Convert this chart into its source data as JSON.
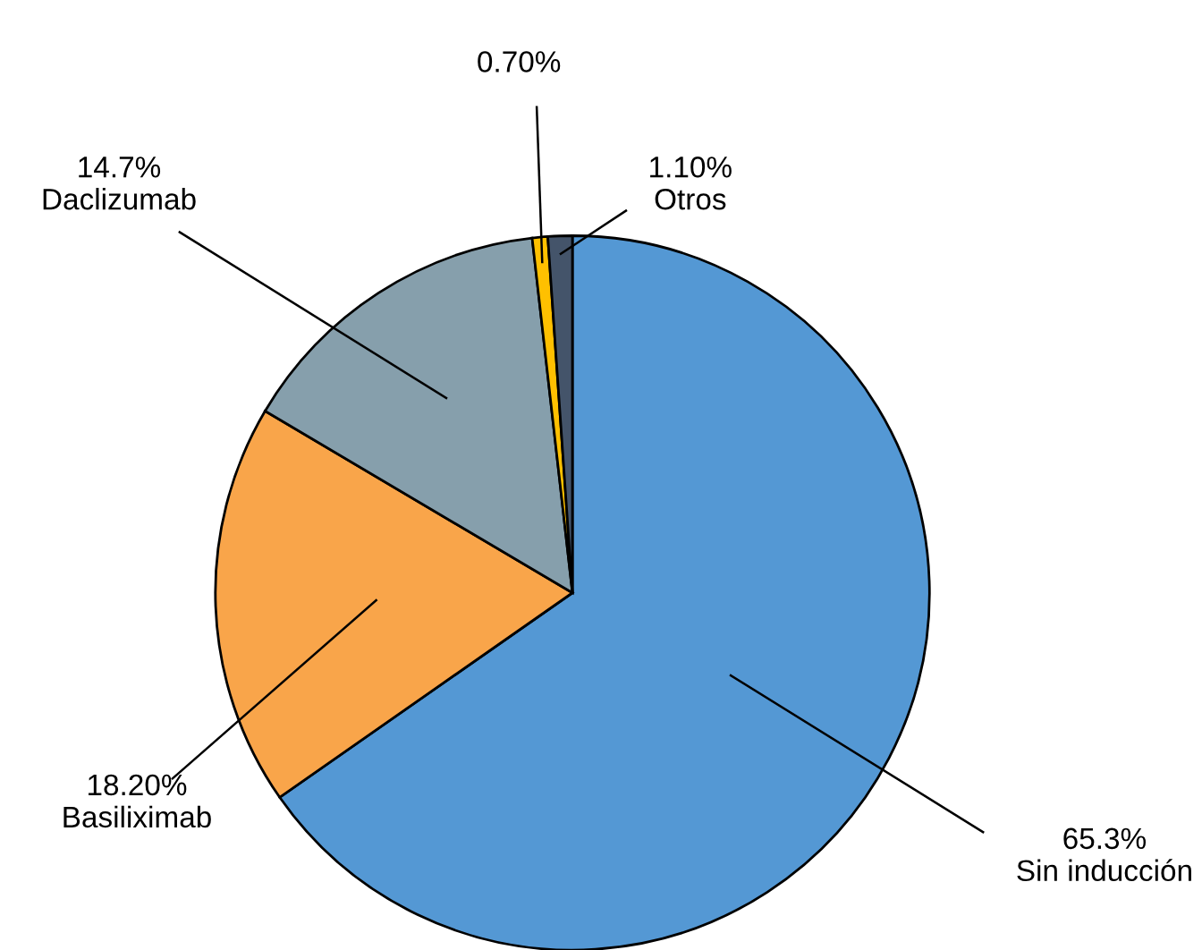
{
  "chart_data": {
    "type": "pie",
    "categories": [
      "Sin inducción",
      "Basiliximab",
      "Daclizumab",
      null,
      "Otros"
    ],
    "values": [
      65.3,
      18.2,
      14.7,
      0.7,
      1.1
    ],
    "value_labels": [
      "65.3%",
      "18.20%",
      "14.7%",
      "0.70%",
      "1.10%"
    ],
    "colors": [
      "#5498d4",
      "#f9a54a",
      "#869fac",
      "#ffc000",
      "#44546a"
    ],
    "legend": false
  }
}
